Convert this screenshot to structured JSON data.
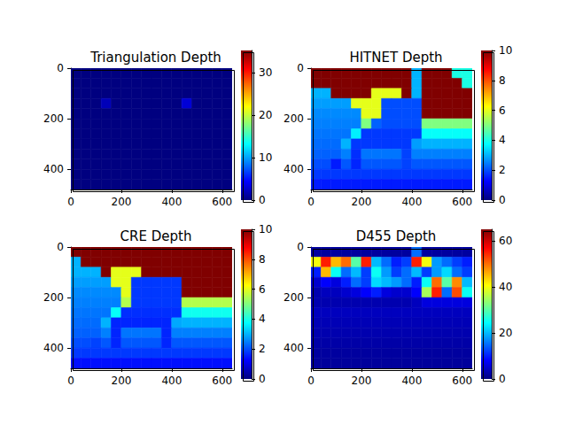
{
  "chart_data": [
    {
      "type": "heatmap",
      "title": "Triangulation Depth",
      "color": "jet",
      "xlim": [
        -0.5,
        639.5
      ],
      "ylim": [
        479.5,
        -0.5
      ],
      "xticks": [
        0,
        200,
        400,
        600
      ],
      "yticks": [
        0,
        200,
        400
      ],
      "colorbar_range": [
        0,
        35.3
      ],
      "colorbar_ticks": [
        0,
        10,
        20,
        30
      ],
      "cells": [
        [
          0,
          0,
          0,
          0,
          0,
          0,
          0,
          0,
          0,
          0,
          0,
          0,
          0,
          0,
          0,
          0
        ],
        [
          0,
          0,
          0,
          0,
          0,
          0,
          0,
          0,
          0,
          0,
          0,
          0,
          0,
          0,
          0,
          0
        ],
        [
          0,
          0,
          0,
          0,
          0,
          0,
          0,
          0,
          0,
          0,
          0,
          0,
          0,
          0,
          0,
          0
        ],
        [
          0,
          0,
          0,
          2,
          0,
          0,
          0,
          0,
          0,
          0,
          0,
          3,
          0,
          0,
          0,
          0
        ],
        [
          0,
          0,
          0,
          0,
          0,
          0,
          0,
          0,
          0,
          0,
          0,
          0,
          0,
          0,
          0,
          0
        ],
        [
          0,
          0,
          0,
          0,
          0,
          0,
          0,
          0,
          0,
          0,
          0,
          0,
          0,
          0,
          0,
          0
        ],
        [
          0,
          0,
          0,
          0,
          0,
          0,
          0,
          0,
          0,
          0,
          0,
          0,
          0,
          0,
          0,
          0
        ],
        [
          0,
          0,
          0,
          0,
          0,
          0,
          0,
          0,
          0,
          0,
          0,
          0,
          0,
          0,
          0,
          0
        ],
        [
          0,
          0,
          0,
          0,
          0,
          0,
          0,
          0,
          0,
          0,
          0,
          0,
          0,
          0,
          0,
          0
        ],
        [
          0,
          0,
          0,
          0,
          0,
          0,
          0,
          0,
          0,
          0,
          0,
          0,
          0,
          0,
          0,
          0
        ],
        [
          0,
          0,
          0,
          0,
          0,
          0,
          0,
          0,
          0,
          0,
          0,
          0,
          0,
          0,
          0,
          0
        ],
        [
          0,
          0,
          0,
          0,
          0,
          0,
          0,
          0,
          0,
          0,
          0,
          0,
          0,
          0,
          0,
          0
        ]
      ]
    },
    {
      "type": "heatmap",
      "title": "HITNET Depth",
      "color": "jet",
      "xlim": [
        -0.5,
        639.5
      ],
      "ylim": [
        479.5,
        -0.5
      ],
      "xticks": [
        0,
        200,
        400,
        600
      ],
      "yticks": [
        0,
        200,
        400
      ],
      "colorbar_range": [
        0,
        10
      ],
      "colorbar_ticks": [
        0,
        2,
        4,
        6,
        8,
        10
      ],
      "cells": [
        [
          20,
          20,
          20,
          20,
          20,
          20,
          20,
          20,
          20,
          20,
          3,
          20,
          20,
          20,
          4,
          4
        ],
        [
          20,
          20,
          20,
          20,
          20,
          20,
          20,
          20,
          20,
          20,
          3,
          20,
          20,
          20,
          20,
          4
        ],
        [
          3,
          3,
          20,
          20,
          20,
          20,
          6,
          6,
          6,
          20,
          3,
          20,
          20,
          20,
          20,
          20
        ],
        [
          2.8,
          2.8,
          2.8,
          2.8,
          6,
          6,
          6,
          2,
          2,
          2,
          2,
          20,
          20,
          20,
          20,
          20
        ],
        [
          2.6,
          2.6,
          2.6,
          2.6,
          2.6,
          6,
          6,
          2,
          2,
          2,
          2,
          20,
          20,
          20,
          20,
          20
        ],
        [
          2.5,
          2.5,
          2.5,
          2.5,
          2.5,
          5,
          2.2,
          2,
          2,
          2,
          2,
          5,
          5,
          5,
          5,
          5
        ],
        [
          2.4,
          2.4,
          2.4,
          2.4,
          3.6,
          1.8,
          1.8,
          1.8,
          1.8,
          1.8,
          1.8,
          3.8,
          3.8,
          3.8,
          3.8,
          3.8
        ],
        [
          2.3,
          2.3,
          2.3,
          3,
          1.8,
          1.8,
          1.8,
          1.8,
          1.8,
          1.8,
          2.8,
          3,
          3,
          3,
          3,
          3
        ],
        [
          2.2,
          2.2,
          2.2,
          2.5,
          1.7,
          2.4,
          2.4,
          2.4,
          2.4,
          1.9,
          2.5,
          2.5,
          2.5,
          2.5,
          2.5,
          2.5
        ],
        [
          2,
          2,
          1.5,
          2.1,
          1.6,
          2.1,
          2.1,
          2.1,
          2.1,
          1.9,
          2.1,
          2.1,
          2.1,
          2.1,
          2.1,
          2.1
        ],
        [
          1.8,
          1.8,
          1.8,
          1.8,
          1.8,
          1.8,
          1.8,
          1.8,
          1.8,
          1.8,
          1.8,
          1.8,
          1.8,
          1.8,
          1.8,
          1.8
        ],
        [
          1.5,
          1.5,
          1.5,
          1.5,
          1.5,
          1.5,
          1.5,
          1.5,
          1.5,
          1.5,
          1.5,
          1.5,
          1.5,
          1.5,
          1.5,
          1.5
        ]
      ]
    },
    {
      "type": "heatmap",
      "title": "CRE Depth",
      "color": "jet",
      "xlim": [
        -0.5,
        639.5
      ],
      "ylim": [
        479.5,
        -0.5
      ],
      "xticks": [
        0,
        200,
        400,
        600
      ],
      "yticks": [
        0,
        200,
        400
      ],
      "colorbar_range": [
        0,
        10
      ],
      "colorbar_ticks": [
        0,
        2,
        4,
        6,
        8,
        10
      ],
      "cells": [
        [
          20,
          20,
          20,
          20,
          20,
          20,
          20,
          20,
          20,
          20,
          20,
          20,
          20,
          20,
          20,
          20
        ],
        [
          3,
          20,
          20,
          20,
          20,
          20,
          20,
          20,
          20,
          20,
          20,
          20,
          20,
          20,
          20,
          20
        ],
        [
          3,
          3,
          3,
          20,
          6,
          6,
          6,
          20,
          20,
          20,
          20,
          20,
          20,
          20,
          20,
          20
        ],
        [
          2.8,
          2.8,
          2.8,
          2.8,
          6,
          6,
          1.8,
          1.8,
          1.8,
          1.8,
          1.8,
          20,
          20,
          20,
          20,
          20
        ],
        [
          2.6,
          2.6,
          2.6,
          2.6,
          2.6,
          6,
          1.8,
          1.8,
          1.8,
          1.8,
          1.8,
          20,
          20,
          20,
          20,
          20
        ],
        [
          2.5,
          2.5,
          2.5,
          2.5,
          2.5,
          5.5,
          1.8,
          1.8,
          1.8,
          1.8,
          1.8,
          5.5,
          5.5,
          5.5,
          5.5,
          5.5
        ],
        [
          2.4,
          2.4,
          2.4,
          2.4,
          3.8,
          1.7,
          1.7,
          1.7,
          1.7,
          1.7,
          1.7,
          3.9,
          3.9,
          3.9,
          3.9,
          3.9
        ],
        [
          2.3,
          2.3,
          2.3,
          3,
          1.6,
          1.6,
          1.6,
          1.6,
          1.6,
          1.6,
          2.9,
          3,
          3,
          3,
          3,
          3
        ],
        [
          2.2,
          2.2,
          2.2,
          2.5,
          1.6,
          2.4,
          2.4,
          2.4,
          2.4,
          1.6,
          2.5,
          2.5,
          2.5,
          2.5,
          2.5,
          2.5
        ],
        [
          2,
          2,
          1.9,
          2.1,
          1.6,
          2.1,
          2.1,
          2.1,
          2.1,
          1.6,
          2.1,
          2.1,
          2.1,
          2.1,
          2.1,
          2.1
        ],
        [
          1.8,
          1.8,
          1.8,
          1.8,
          1.8,
          1.8,
          1.8,
          1.8,
          1.8,
          1.8,
          1.8,
          1.8,
          1.8,
          1.8,
          1.8,
          1.8
        ],
        [
          1.4,
          1.4,
          1.4,
          1.4,
          1.4,
          1.4,
          1.4,
          1.4,
          1.4,
          1.4,
          1.4,
          1.4,
          1.4,
          1.4,
          1.4,
          1.4
        ]
      ]
    },
    {
      "type": "heatmap",
      "title": "D455 Depth",
      "color": "jet",
      "xlim": [
        -0.5,
        639.5
      ],
      "ylim": [
        479.5,
        -0.5
      ],
      "xticks": [
        0,
        200,
        400,
        600
      ],
      "yticks": [
        0,
        200,
        400
      ],
      "colorbar_range": [
        0,
        65
      ],
      "colorbar_ticks": [
        0,
        20,
        40,
        60
      ],
      "cells": [
        [
          2,
          2,
          2,
          2,
          2,
          2,
          2,
          2,
          2,
          2,
          15,
          2,
          2,
          2,
          2,
          2
        ],
        [
          40,
          55,
          45,
          50,
          30,
          55,
          20,
          15,
          10,
          12,
          55,
          40,
          18,
          15,
          12,
          10
        ],
        [
          10,
          45,
          25,
          15,
          20,
          12,
          25,
          18,
          12,
          15,
          20,
          12,
          18,
          22,
          15,
          12
        ],
        [
          5,
          8,
          6,
          10,
          15,
          12,
          22,
          20,
          18,
          15,
          10,
          25,
          50,
          30,
          48,
          20
        ],
        [
          3,
          4,
          4,
          5,
          6,
          8,
          10,
          6,
          5,
          5,
          8,
          35,
          55,
          15,
          52,
          25
        ],
        [
          3,
          3,
          3,
          3,
          3,
          3,
          3,
          3,
          3,
          3,
          4,
          6,
          6,
          6,
          6,
          6
        ],
        [
          4,
          4,
          4,
          4,
          4,
          4,
          4,
          4,
          4,
          4,
          4,
          4,
          4,
          4,
          4,
          4
        ],
        [
          3.5,
          3.5,
          3.5,
          3.5,
          3.5,
          3.5,
          3.5,
          3.5,
          3.5,
          3.5,
          3.5,
          3.5,
          3.5,
          3.5,
          3.5,
          3.5
        ],
        [
          3,
          3,
          3,
          3,
          3,
          3,
          3,
          3,
          3,
          3,
          3,
          3,
          3,
          3,
          3,
          3
        ],
        [
          2.5,
          2.5,
          2.5,
          2.5,
          2.5,
          2.5,
          2.5,
          2.5,
          2.5,
          2.5,
          2.5,
          2.5,
          2.5,
          2.5,
          2.5,
          2.5
        ],
        [
          2,
          2,
          2,
          2,
          2,
          2,
          2,
          2,
          2,
          2,
          2,
          2,
          2,
          2,
          2,
          2
        ],
        [
          1.8,
          1.8,
          1.8,
          1.8,
          1.8,
          1.8,
          1.8,
          1.8,
          1.8,
          1.8,
          1.8,
          1.8,
          1.8,
          1.8,
          1.8,
          1.8
        ]
      ]
    }
  ]
}
